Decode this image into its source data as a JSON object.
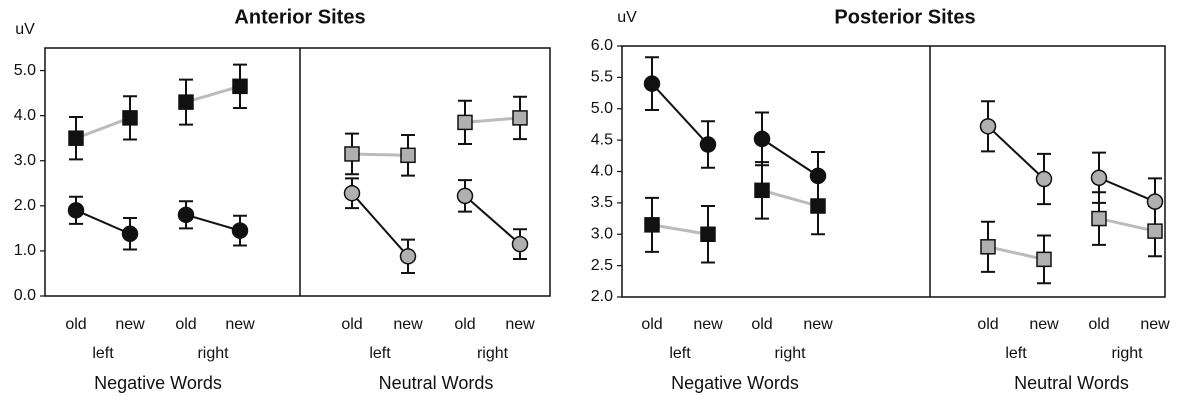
{
  "chart_data": [
    {
      "type": "line",
      "title": "Anterior Sites",
      "y_label": "uV",
      "categories": [
        "old",
        "new",
        "old",
        "new",
        "old",
        "new",
        "old",
        "new"
      ],
      "groups": [
        "left",
        "right",
        "left",
        "right"
      ],
      "sections": [
        "Negative Words",
        "Neutral Words"
      ],
      "ylim": [
        0,
        5.5
      ],
      "yticks": [
        {
          "value": 0,
          "label": "0.0"
        },
        {
          "value": 1,
          "label": "1.0"
        },
        {
          "value": 2,
          "label": "2.0"
        },
        {
          "value": 3,
          "label": "3.0"
        },
        {
          "value": 4,
          "label": "4.0"
        },
        {
          "value": 5,
          "label": "5.0"
        }
      ],
      "series": [
        {
          "marker": "square",
          "color": "#111111",
          "line_color": "#bbbbbb",
          "values": [
            3.5,
            3.95,
            4.3,
            4.65,
            null,
            null,
            null,
            null
          ],
          "errors": [
            0.47,
            0.48,
            0.5,
            0.48,
            null,
            null,
            null,
            null
          ]
        },
        {
          "marker": "circle",
          "color": "#111111",
          "line_color": "#111111",
          "values": [
            1.9,
            1.38,
            1.8,
            1.45,
            null,
            null,
            null,
            null
          ],
          "errors": [
            0.3,
            0.35,
            0.3,
            0.33,
            null,
            null,
            null,
            null
          ]
        },
        {
          "marker": "square",
          "color": "#b0b0b0",
          "line_color": "#bbbbbb",
          "values": [
            null,
            null,
            null,
            null,
            3.15,
            3.12,
            3.85,
            3.95
          ],
          "errors": [
            null,
            null,
            null,
            null,
            0.45,
            0.45,
            0.48,
            0.47
          ]
        },
        {
          "marker": "circle",
          "color": "#b0b0b0",
          "line_color": "#111111",
          "values": [
            null,
            null,
            null,
            null,
            2.28,
            0.88,
            2.22,
            1.15
          ],
          "errors": [
            null,
            null,
            null,
            null,
            0.33,
            0.37,
            0.35,
            0.33
          ]
        }
      ]
    },
    {
      "type": "line",
      "title": "Posterior Sites",
      "y_label": "uV",
      "categories": [
        "old",
        "new",
        "old",
        "new",
        "old",
        "new",
        "old",
        "new"
      ],
      "groups": [
        "left",
        "right",
        "left",
        "right"
      ],
      "sections": [
        "Negative Words",
        "Neutral Words"
      ],
      "ylim": [
        2,
        6
      ],
      "yticks": [
        {
          "value": 2,
          "label": "2.0"
        },
        2.5,
        {
          "value": 3,
          "label": "3.0"
        },
        3.5,
        {
          "value": 4,
          "label": "4.0"
        },
        4.5,
        {
          "value": 5,
          "label": "5.0"
        },
        5.5,
        {
          "value": 6,
          "label": "6.0"
        }
      ],
      "series": [
        {
          "marker": "circle",
          "color": "#111111",
          "line_color": "#111111",
          "values": [
            5.4,
            4.43,
            4.52,
            3.93,
            null,
            null,
            null,
            null
          ],
          "errors": [
            0.42,
            0.37,
            0.42,
            0.38,
            null,
            null,
            null,
            null
          ]
        },
        {
          "marker": "square",
          "color": "#111111",
          "line_color": "#bbbbbb",
          "values": [
            3.15,
            3.0,
            3.7,
            3.45,
            null,
            null,
            null,
            null
          ],
          "errors": [
            0.43,
            0.45,
            0.45,
            0.45,
            null,
            null,
            null,
            null
          ]
        },
        {
          "marker": "circle",
          "color": "#b0b0b0",
          "line_color": "#111111",
          "values": [
            null,
            null,
            null,
            null,
            4.72,
            3.88,
            3.9,
            3.52
          ],
          "errors": [
            null,
            null,
            null,
            null,
            0.4,
            0.4,
            0.4,
            0.37
          ]
        },
        {
          "marker": "square",
          "color": "#b0b0b0",
          "line_color": "#bbbbbb",
          "values": [
            null,
            null,
            null,
            null,
            2.8,
            2.6,
            3.25,
            3.05
          ],
          "errors": [
            null,
            null,
            null,
            null,
            0.4,
            0.38,
            0.42,
            0.4
          ]
        }
      ]
    }
  ]
}
